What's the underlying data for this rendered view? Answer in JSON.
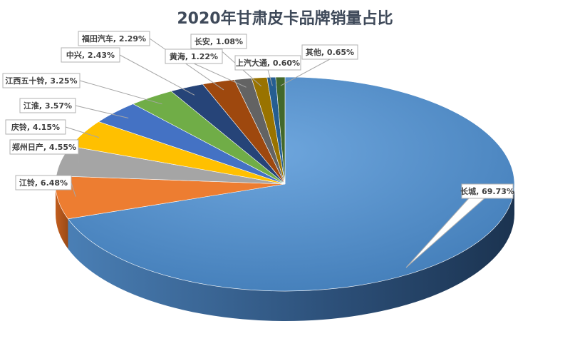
{
  "chart_data": {
    "type": "pie",
    "title": "2020年甘肃皮卡品牌销量占比",
    "slices": [
      {
        "name": "长城",
        "value": 69.73,
        "label": "长城, 69.73%",
        "color": "#5b9bd5"
      },
      {
        "name": "江铃",
        "value": 6.48,
        "label": "江铃, 6.48%",
        "color": "#ed7d31"
      },
      {
        "name": "郑州日产",
        "value": 4.55,
        "label": "郑州日产, 4.55%",
        "color": "#a5a5a5"
      },
      {
        "name": "庆铃",
        "value": 4.15,
        "label": "庆铃, 4.15%",
        "color": "#ffc000"
      },
      {
        "name": "江淮",
        "value": 3.57,
        "label": "江淮, 3.57%",
        "color": "#4472c4"
      },
      {
        "name": "江西五十铃",
        "value": 3.25,
        "label": "江西五十铃, 3.25%",
        "color": "#70ad47"
      },
      {
        "name": "中兴",
        "value": 2.43,
        "label": "中兴, 2.43%",
        "color": "#264478"
      },
      {
        "name": "福田汽车",
        "value": 2.29,
        "label": "福田汽车, 2.29%",
        "color": "#9e480e"
      },
      {
        "name": "黄海",
        "value": 1.22,
        "label": "黄海, 1.22%",
        "color": "#636363"
      },
      {
        "name": "长安",
        "value": 1.08,
        "label": "长安, 1.08%",
        "color": "#997300"
      },
      {
        "name": "上汽大通",
        "value": 0.6,
        "label": "上汽大通, 0.60%",
        "color": "#255e91"
      },
      {
        "name": "其他",
        "value": 0.65,
        "label": "其他, 0.65%",
        "color": "#43682b"
      }
    ]
  }
}
